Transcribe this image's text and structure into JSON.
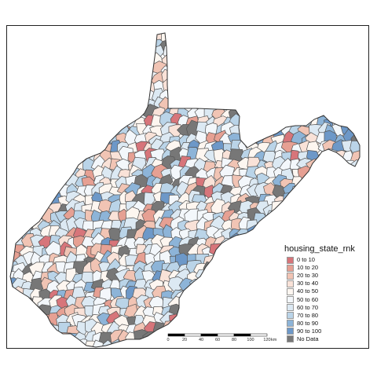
{
  "legend": {
    "title": "housing_state_rnk",
    "items": [
      {
        "label": "0 to 10",
        "color": "#d7757a"
      },
      {
        "label": "10 to 20",
        "color": "#e6a093"
      },
      {
        "label": "20 to 30",
        "color": "#f1c4b4"
      },
      {
        "label": "30 to 40",
        "color": "#f9e2d8"
      },
      {
        "label": "40 to 50",
        "color": "#fdf6f0"
      },
      {
        "label": "50 to 60",
        "color": "#f3f7fb"
      },
      {
        "label": "60 to 70",
        "color": "#dce9f3"
      },
      {
        "label": "70 to 80",
        "color": "#bad4e8"
      },
      {
        "label": "80 to 90",
        "color": "#8db4d8"
      },
      {
        "label": "90 to 100",
        "color": "#6d98c8"
      },
      {
        "label": "No Data",
        "color": "#777777"
      }
    ]
  },
  "scale_bar": {
    "ticks": [
      "0",
      "20",
      "40",
      "60",
      "80",
      "100",
      "120"
    ],
    "unit": "km"
  },
  "colors": {
    "border": "#555555",
    "outline": "#333333"
  }
}
